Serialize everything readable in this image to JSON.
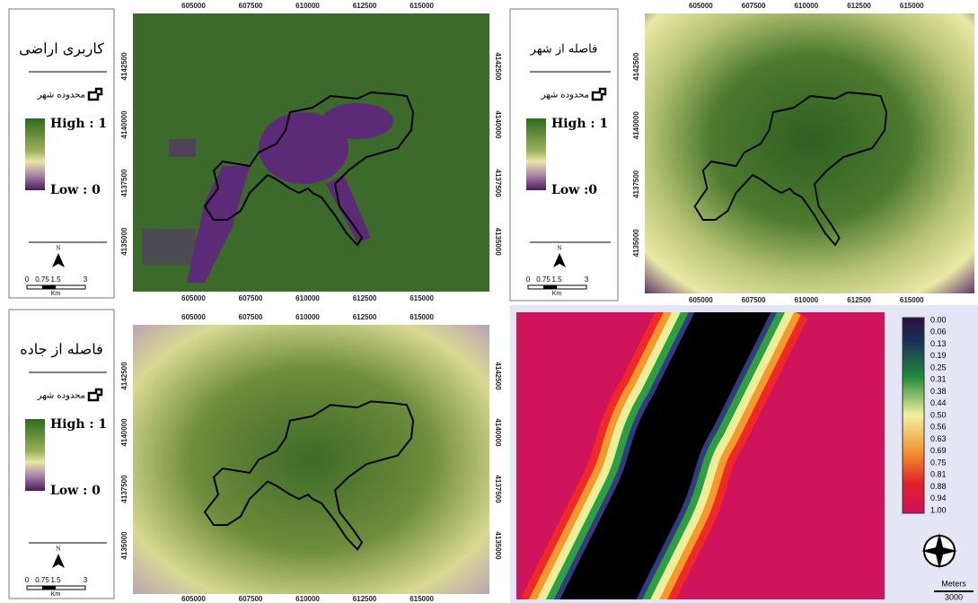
{
  "panels": [
    {
      "legend": {
        "title": "کاربری اراضی",
        "boundary_label": "محدوده شهر",
        "high": "High : 1",
        "low": "Low : 0",
        "north": "N",
        "scale_ticks": [
          "0",
          "0.75",
          "1.5",
          "3"
        ],
        "scale_unit": "Km"
      },
      "x_ticks": [
        "605000",
        "607500",
        "610000",
        "612500",
        "615000"
      ],
      "y_ticks": [
        "4142500",
        "4140000",
        "4137500",
        "4135000"
      ]
    },
    {
      "legend": {
        "title": "فاصله از شهر",
        "boundary_label": "محدوده شهر",
        "high": "High : 1",
        "low": "Low :0",
        "north": "N",
        "scale_ticks": [
          "0",
          "0.75",
          "1.5",
          "3"
        ],
        "scale_unit": "Km"
      },
      "x_ticks": [
        "605000",
        "607500",
        "610000",
        "612500",
        "615000"
      ],
      "y_ticks": [
        "4142500",
        "4140000",
        "4137500",
        "4135000"
      ]
    },
    {
      "legend": {
        "title": "فاصله از جاده",
        "boundary_label": "محدوده شهر",
        "high": "High : 1",
        "low": "Low : 0",
        "north": "N",
        "scale_ticks": [
          "0",
          "0.75",
          "1.5",
          "3"
        ],
        "scale_unit": "Km"
      },
      "x_ticks": [
        "605000",
        "607500",
        "610000",
        "612500",
        "615000"
      ],
      "y_ticks": [
        "4142500",
        "4140000",
        "4137500",
        "4135000"
      ]
    }
  ],
  "colorbar": {
    "labels": [
      "0.00",
      "0.06",
      "0.13",
      "0.19",
      "0.25",
      "0.31",
      "0.38",
      "0.44",
      "0.50",
      "0.56",
      "0.63",
      "0.69",
      "0.75",
      "0.81",
      "0.88",
      "0.94",
      "1.00"
    ],
    "unit": "Meters",
    "scale_value": "3000"
  }
}
